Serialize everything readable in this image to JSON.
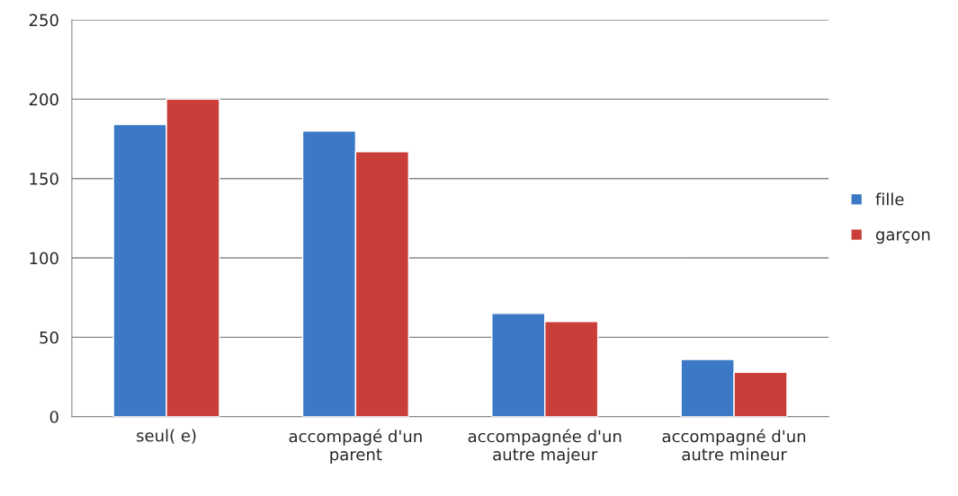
{
  "chart_data": {
    "type": "bar",
    "categories": [
      "seul( e)",
      "accompagé d'un\nparent",
      "accompagnée d'un\nautre majeur",
      "accompagné d'un\nautre mineur"
    ],
    "series": [
      {
        "name": "fille",
        "color": "#3b78c6",
        "values": [
          184,
          180,
          65,
          36
        ]
      },
      {
        "name": "garçon",
        "color": "#c93e38",
        "values": [
          200,
          167,
          60,
          28
        ]
      }
    ],
    "ylim": [
      0,
      250
    ],
    "yticks": [
      0,
      50,
      100,
      150,
      200,
      250
    ],
    "grid": "y",
    "legend": "right"
  }
}
